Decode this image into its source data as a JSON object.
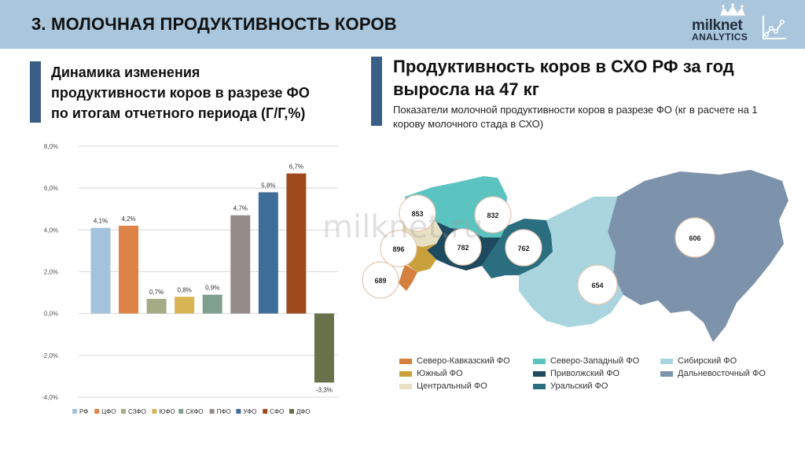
{
  "header": {
    "title": "3. МОЛОЧНАЯ ПРОДУКТИВНОСТЬ КОРОВ",
    "logo_name": "milknet",
    "logo_sub": "ANALYTICS"
  },
  "left_panel": {
    "title_lines": [
      "Динамика изменения",
      "продуктивности коров в разрезе ФО",
      "по итогам отчетного периода (Г/Г,%)"
    ]
  },
  "right_panel": {
    "title_lines": [
      "Продуктивность коров в СХО РФ за год",
      "выросла на 47 кг"
    ],
    "subtitle_lines": [
      "Показатели молочной продуктивности коров в разрезе ФО (кг в расчете на 1",
      "корову молочного стада в СХО)"
    ]
  },
  "watermark": "milknet.ru",
  "chart_data": [
    {
      "type": "bar",
      "categories": [
        "РФ",
        "ЦФО",
        "СЗФО",
        "ЮФО",
        "СКФО",
        "ПФО",
        "УФО",
        "СФО",
        "ДФО"
      ],
      "values": [
        4.1,
        4.2,
        0.7,
        0.8,
        0.9,
        4.7,
        5.8,
        6.7,
        -3.3
      ],
      "data_labels": [
        "4,1%",
        "4,2%",
        "0,7%",
        "0,8%",
        "0,9%",
        "4,7%",
        "5,8%",
        "6,7%",
        "-3,3%"
      ],
      "colors": [
        "#a4c2db",
        "#de8347",
        "#a5aa87",
        "#d9b454",
        "#7fa08f",
        "#958b88",
        "#3f6d99",
        "#9e4a1d",
        "#67714a"
      ],
      "ylim": [
        -4,
        8
      ],
      "yticks": [
        8,
        6,
        4,
        2,
        0,
        -2,
        -4
      ],
      "ytick_labels": [
        "8,0%",
        "6,0%",
        "4,0%",
        "2,0%",
        "0,0%",
        "-2,0%",
        "-4,0%"
      ],
      "grid": true,
      "legend": "bottom",
      "title": "",
      "xlabel": "",
      "ylabel": ""
    },
    {
      "type": "map",
      "values": [
        {
          "district": "Центральный ФО",
          "value": 853
        },
        {
          "district": "Северо-Западный ФО",
          "value": 832
        },
        {
          "district": "Приволжский ФО",
          "value": 782
        },
        {
          "district": "Уральский ФО",
          "value": 762
        },
        {
          "district": "Южный ФО",
          "value": 896
        },
        {
          "district": "Северо-Кавказский ФО",
          "value": 689
        },
        {
          "district": "Сибирский ФО",
          "value": 654
        },
        {
          "district": "Дальневосточный ФО",
          "value": 606
        }
      ],
      "value_labels": [
        "853",
        "832",
        "896",
        "782",
        "762",
        "689",
        "654",
        "606"
      ],
      "legend": [
        {
          "label": "Северо-Кавказский ФО",
          "color": "#d4803e"
        },
        {
          "label": "Южный ФО",
          "color": "#c9a03c"
        },
        {
          "label": "Центральный ФО",
          "color": "#e8e0c2"
        },
        {
          "label": "Северо-Западный ФО",
          "color": "#5bc3c0"
        },
        {
          "label": "Приволжский ФО",
          "color": "#1d4a5e"
        },
        {
          "label": "Уральский ФО",
          "color": "#2a6e80"
        },
        {
          "label": "Сибирский ФО",
          "color": "#a9d5df"
        },
        {
          "label": "Дальневосточный ФО",
          "color": "#7d93ab"
        }
      ]
    }
  ],
  "colors": {
    "header_bg": "#a9c6dd",
    "accent_bar": "#3a5f86"
  }
}
